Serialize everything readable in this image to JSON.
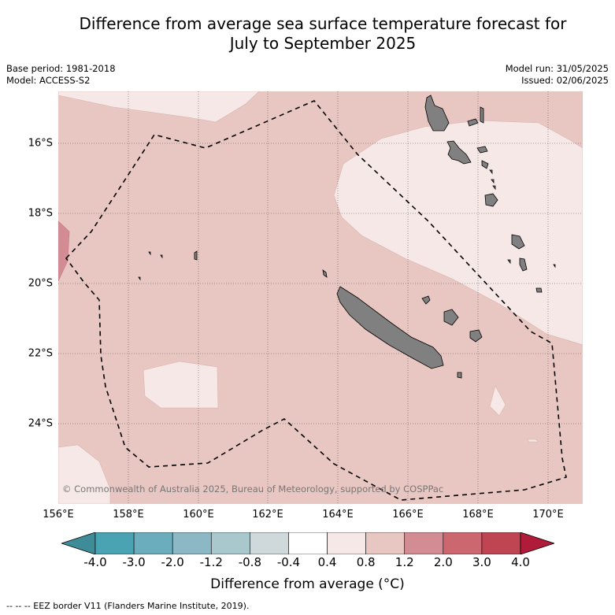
{
  "title_line1": "Difference from average sea surface temperature forecast for",
  "title_line2": "July to September 2025",
  "base_period": "Base period: 1981-2018",
  "model": "Model: ACCESS-S2",
  "model_run": "Model run: 31/05/2025",
  "issued": "Issued: 02/06/2025",
  "lat_labels": [
    "16°S",
    "18°S",
    "20°S",
    "22°S",
    "24°S"
  ],
  "lon_labels": [
    "156°E",
    "158°E",
    "160°E",
    "162°E",
    "164°E",
    "166°E",
    "168°E",
    "170°E"
  ],
  "colorbar": {
    "ticks": [
      "-4.0",
      "-3.0",
      "-2.0",
      "-1.2",
      "-0.8",
      "-0.4",
      "0.4",
      "0.8",
      "1.2",
      "2.0",
      "3.0",
      "4.0"
    ],
    "colors": [
      "#3f8c99",
      "#4aa3b3",
      "#6badbd",
      "#8cb7c4",
      "#a9c8ce",
      "#cfd9db",
      "#ffffff",
      "#f6e8e6",
      "#e8c6c1",
      "#d48c94",
      "#cc6770",
      "#bf4553",
      "#b01b3a"
    ],
    "label": "Difference from average (°C)"
  },
  "footnote": "--  --  -- EEZ border V11 (Flanders Marine Institute, 2019).",
  "copyright": "© Commonwealth of Australia 2025, Bureau of Meteorology, supported by COSPPac"
}
